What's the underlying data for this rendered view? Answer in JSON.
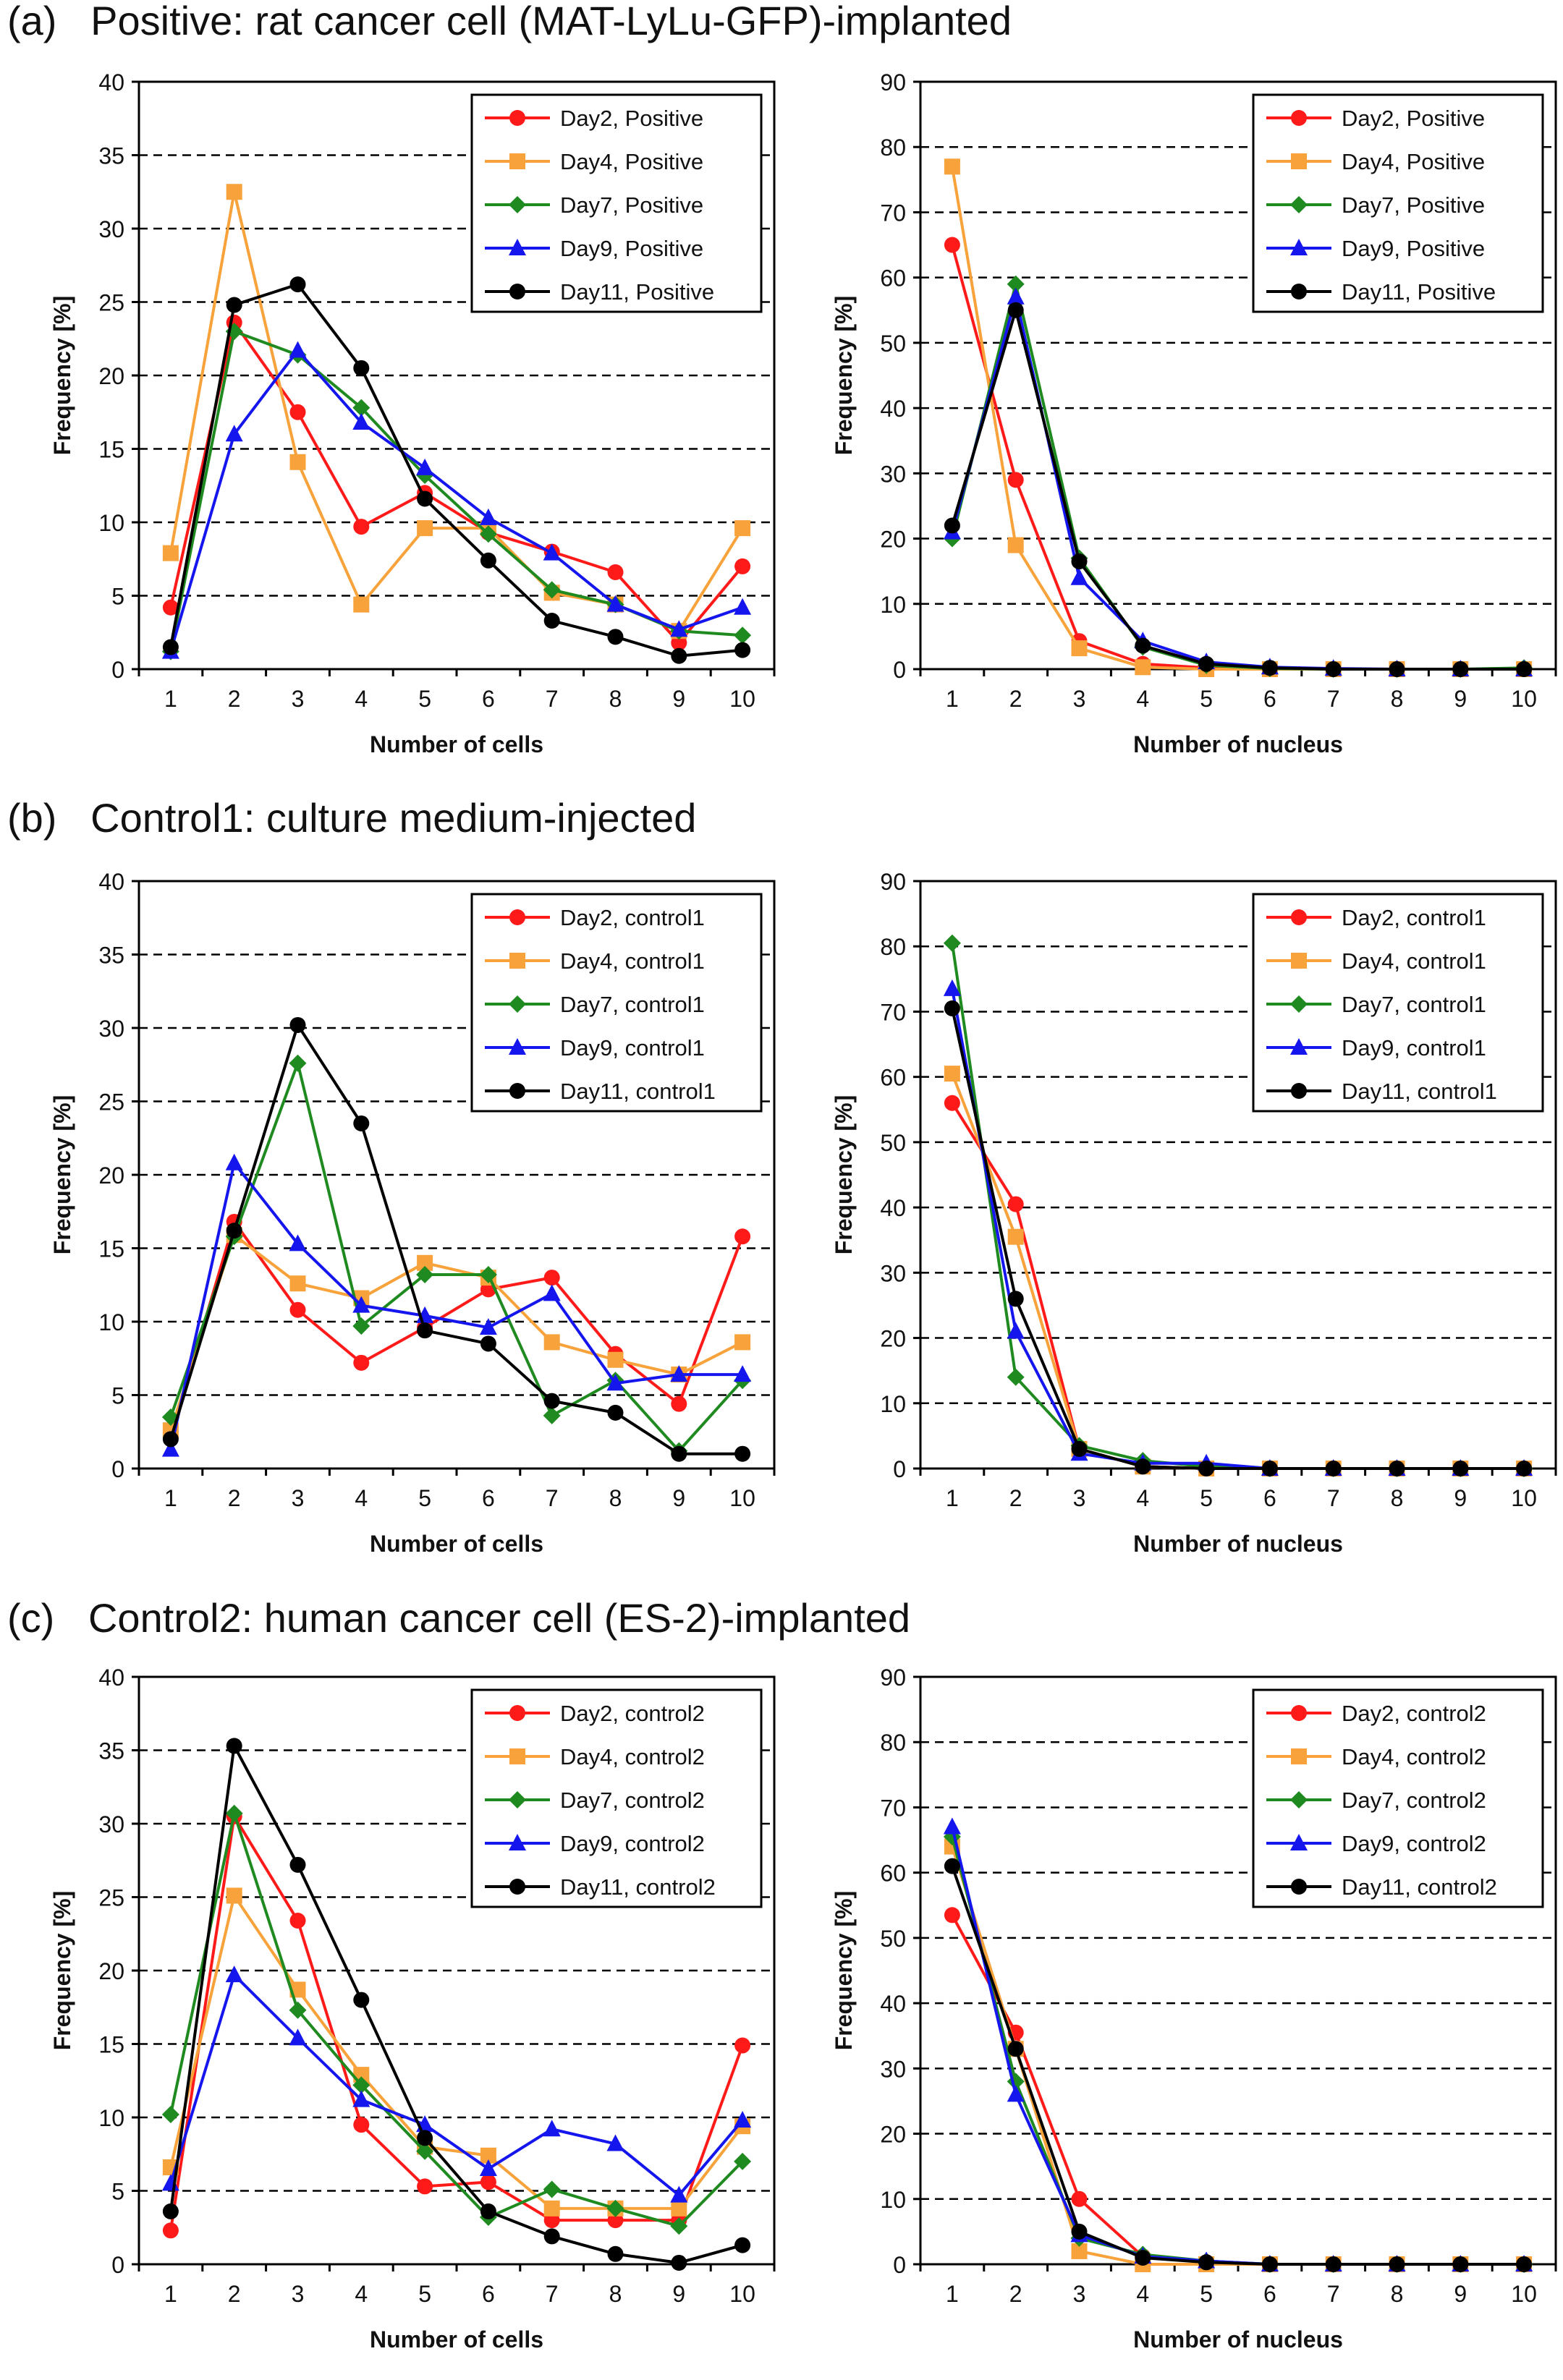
{
  "sections": [
    {
      "label": "(a)",
      "title": "Positive: rat cancer cell (MAT-LyLu-GFP)-implanted"
    },
    {
      "label": "(b)",
      "title": "Control1: culture medium-injected"
    },
    {
      "label": "(c)",
      "title": "Control2: human cancer cell (ES-2)-implanted"
    }
  ],
  "colors": {
    "day2": "#ff1a1a",
    "day4": "#f7a23a",
    "day7": "#1f8a1f",
    "day9": "#1515ee",
    "day11": "#000000",
    "grid": "#000000"
  },
  "chart_data": [
    {
      "id": "a-cells",
      "type": "line",
      "section": "(a)",
      "xlabel": "Number of cells",
      "ylabel": "Frequency [%]",
      "x": [
        1,
        2,
        3,
        4,
        5,
        6,
        7,
        8,
        9,
        10
      ],
      "ylim": [
        0,
        40
      ],
      "yticks": [
        0,
        5,
        10,
        15,
        20,
        25,
        30,
        35,
        40
      ],
      "grid": "dashed-horizontal",
      "legend": "top-right",
      "series": [
        {
          "name": "Day2, Positive",
          "color": "#ff1a1a",
          "marker": "circle",
          "values": [
            4.2,
            23.6,
            17.5,
            9.7,
            12.0,
            9.3,
            8.0,
            6.6,
            1.8,
            7.0
          ]
        },
        {
          "name": "Day4, Positive",
          "color": "#f7a23a",
          "marker": "square",
          "values": [
            7.9,
            32.5,
            14.1,
            4.4,
            9.6,
            9.6,
            5.2,
            4.4,
            2.6,
            9.6
          ]
        },
        {
          "name": "Day7, Positive",
          "color": "#1f8a1f",
          "marker": "diamond",
          "values": [
            1.2,
            23.0,
            21.4,
            17.8,
            13.2,
            9.2,
            5.4,
            4.4,
            2.6,
            2.3
          ]
        },
        {
          "name": "Day9, Positive",
          "color": "#1515ee",
          "marker": "triangle",
          "values": [
            1.2,
            16.0,
            21.7,
            16.8,
            13.7,
            10.3,
            7.9,
            4.4,
            2.7,
            4.2
          ]
        },
        {
          "name": "Day11, Positive",
          "color": "#000000",
          "marker": "circle",
          "values": [
            1.5,
            24.8,
            26.2,
            20.5,
            11.6,
            7.4,
            3.3,
            2.2,
            0.9,
            1.3
          ]
        }
      ]
    },
    {
      "id": "a-nucleus",
      "type": "line",
      "section": "(a)",
      "xlabel": "Number of  nucleus",
      "ylabel": "Frequency [%]",
      "x": [
        1,
        2,
        3,
        4,
        5,
        6,
        7,
        8,
        9,
        10
      ],
      "ylim": [
        0,
        90
      ],
      "yticks": [
        0,
        10,
        20,
        30,
        40,
        50,
        60,
        70,
        80,
        90
      ],
      "grid": "dashed-horizontal",
      "legend": "top-right",
      "series": [
        {
          "name": "Day2, Positive",
          "color": "#ff1a1a",
          "marker": "circle",
          "values": [
            65.0,
            29.0,
            4.3,
            0.8,
            0.2,
            0,
            0,
            0,
            0,
            0
          ]
        },
        {
          "name": "Day4, Positive",
          "color": "#f7a23a",
          "marker": "square",
          "values": [
            77.0,
            19.0,
            3.2,
            0.3,
            0,
            0,
            0,
            0,
            0,
            0
          ]
        },
        {
          "name": "Day7, Positive",
          "color": "#1f8a1f",
          "marker": "diamond",
          "values": [
            20.0,
            59.0,
            17.0,
            3.4,
            0.6,
            0.1,
            0,
            0,
            0,
            0.2
          ]
        },
        {
          "name": "Day9, Positive",
          "color": "#1515ee",
          "marker": "triangle",
          "values": [
            21.0,
            57.0,
            14.0,
            4.3,
            1.1,
            0.3,
            0.1,
            0,
            0,
            0
          ]
        },
        {
          "name": "Day11, Positive",
          "color": "#000000",
          "marker": "circle",
          "values": [
            22.0,
            55.0,
            16.5,
            3.6,
            0.8,
            0.2,
            0,
            0,
            0,
            0
          ]
        }
      ]
    },
    {
      "id": "b-cells",
      "type": "line",
      "section": "(b)",
      "xlabel": "Number of cells",
      "ylabel": "Frequency [%]",
      "x": [
        1,
        2,
        3,
        4,
        5,
        6,
        7,
        8,
        9,
        10
      ],
      "ylim": [
        0,
        40
      ],
      "yticks": [
        0,
        5,
        10,
        15,
        20,
        25,
        30,
        35,
        40
      ],
      "grid": "dashed-horizontal",
      "legend": "top-right",
      "series": [
        {
          "name": "Day2, control1",
          "color": "#ff1a1a",
          "marker": "circle",
          "values": [
            2.2,
            16.8,
            10.8,
            7.2,
            9.6,
            12.2,
            13.0,
            7.8,
            4.4,
            15.8
          ]
        },
        {
          "name": "Day4, control1",
          "color": "#f7a23a",
          "marker": "square",
          "values": [
            2.6,
            15.9,
            12.6,
            11.6,
            14.0,
            13.0,
            8.6,
            7.4,
            6.4,
            8.6
          ]
        },
        {
          "name": "Day7, control1",
          "color": "#1f8a1f",
          "marker": "diamond",
          "values": [
            3.5,
            15.8,
            27.6,
            9.7,
            13.2,
            13.2,
            3.6,
            6.0,
            1.2,
            6.0
          ]
        },
        {
          "name": "Day9, control1",
          "color": "#1515ee",
          "marker": "triangle",
          "values": [
            1.3,
            20.8,
            15.3,
            11.1,
            10.4,
            9.6,
            11.9,
            5.8,
            6.4,
            6.4
          ]
        },
        {
          "name": "Day11, control1",
          "color": "#000000",
          "marker": "circle",
          "values": [
            2.0,
            16.2,
            30.2,
            23.5,
            9.4,
            8.5,
            4.6,
            3.8,
            1.0,
            1.0
          ]
        }
      ]
    },
    {
      "id": "b-nucleus",
      "type": "line",
      "section": "(b)",
      "xlabel": "Number of  nucleus",
      "ylabel": "Frequency [%]",
      "x": [
        1,
        2,
        3,
        4,
        5,
        6,
        7,
        8,
        9,
        10
      ],
      "ylim": [
        0,
        90
      ],
      "yticks": [
        0,
        10,
        20,
        30,
        40,
        50,
        60,
        70,
        80,
        90
      ],
      "grid": "dashed-horizontal",
      "legend": "top-right",
      "series": [
        {
          "name": "Day2, control1",
          "color": "#ff1a1a",
          "marker": "circle",
          "values": [
            56.0,
            40.5,
            3.0,
            0.3,
            0,
            0,
            0,
            0,
            0,
            0
          ]
        },
        {
          "name": "Day4, control1",
          "color": "#f7a23a",
          "marker": "square",
          "values": [
            60.5,
            35.5,
            3.0,
            0.3,
            0,
            0,
            0,
            0,
            0,
            0
          ]
        },
        {
          "name": "Day7, control1",
          "color": "#1f8a1f",
          "marker": "diamond",
          "values": [
            80.5,
            14.0,
            3.5,
            1.2,
            0.3,
            0,
            0,
            0,
            0,
            0
          ]
        },
        {
          "name": "Day9, control1",
          "color": "#1515ee",
          "marker": "triangle",
          "values": [
            73.5,
            21.0,
            2.3,
            0.8,
            0.8,
            0,
            0,
            0,
            0,
            0
          ]
        },
        {
          "name": "Day11, control1",
          "color": "#000000",
          "marker": "circle",
          "values": [
            70.5,
            26.0,
            3.0,
            0.3,
            0,
            0,
            0,
            0,
            0,
            0
          ]
        }
      ]
    },
    {
      "id": "c-cells",
      "type": "line",
      "section": "(c)",
      "xlabel": "Number of cells",
      "ylabel": "Frequency [%]",
      "x": [
        1,
        2,
        3,
        4,
        5,
        6,
        7,
        8,
        9,
        10
      ],
      "ylim": [
        0,
        40
      ],
      "yticks": [
        0,
        5,
        10,
        15,
        20,
        25,
        30,
        35,
        40
      ],
      "grid": "dashed-horizontal",
      "legend": "top-right",
      "series": [
        {
          "name": "Day2, control2",
          "color": "#ff1a1a",
          "marker": "circle",
          "values": [
            2.3,
            30.5,
            23.4,
            9.5,
            5.3,
            5.6,
            3.0,
            3.0,
            3.0,
            14.9
          ]
        },
        {
          "name": "Day4, control2",
          "color": "#f7a23a",
          "marker": "square",
          "values": [
            6.6,
            25.1,
            18.7,
            12.9,
            8.0,
            7.4,
            3.8,
            3.8,
            3.8,
            9.4
          ]
        },
        {
          "name": "Day7, control2",
          "color": "#1f8a1f",
          "marker": "diamond",
          "values": [
            10.2,
            30.7,
            17.3,
            12.2,
            7.7,
            3.2,
            5.1,
            3.8,
            2.6,
            7.0
          ]
        },
        {
          "name": "Day9, control2",
          "color": "#1515ee",
          "marker": "triangle",
          "values": [
            5.5,
            19.7,
            15.4,
            11.2,
            9.5,
            6.5,
            9.2,
            8.2,
            4.7,
            9.8
          ]
        },
        {
          "name": "Day11, control2",
          "color": "#000000",
          "marker": "circle",
          "values": [
            3.6,
            35.3,
            27.2,
            18.0,
            8.6,
            3.6,
            1.9,
            0.7,
            0.1,
            1.3
          ]
        }
      ]
    },
    {
      "id": "c-nucleus",
      "type": "line",
      "section": "(c)",
      "xlabel": "Number of  nucleus",
      "ylabel": "Frequency [%]",
      "x": [
        1,
        2,
        3,
        4,
        5,
        6,
        7,
        8,
        9,
        10
      ],
      "ylim": [
        0,
        90
      ],
      "yticks": [
        0,
        10,
        20,
        30,
        40,
        50,
        60,
        70,
        80,
        90
      ],
      "grid": "dashed-horizontal",
      "legend": "top-right",
      "series": [
        {
          "name": "Day2, control2",
          "color": "#ff1a1a",
          "marker": "circle",
          "values": [
            53.5,
            35.5,
            10.0,
            1.2,
            0.3,
            0,
            0,
            0,
            0,
            0
          ]
        },
        {
          "name": "Day4, control2",
          "color": "#f7a23a",
          "marker": "square",
          "values": [
            64.0,
            33.0,
            2.0,
            0,
            0,
            0,
            0,
            0,
            0,
            0
          ]
        },
        {
          "name": "Day7, control2",
          "color": "#1f8a1f",
          "marker": "diamond",
          "values": [
            65.5,
            28.0,
            4.0,
            1.5,
            0.5,
            0,
            0,
            0,
            0,
            0
          ]
        },
        {
          "name": "Day9, control2",
          "color": "#1515ee",
          "marker": "triangle",
          "values": [
            67.0,
            26.0,
            4.5,
            1.2,
            0.5,
            0,
            0,
            0,
            0,
            0
          ]
        },
        {
          "name": "Day11, control2",
          "color": "#000000",
          "marker": "circle",
          "values": [
            61.0,
            33.0,
            5.0,
            1.0,
            0.3,
            0,
            0,
            0,
            0,
            0
          ]
        }
      ]
    }
  ]
}
